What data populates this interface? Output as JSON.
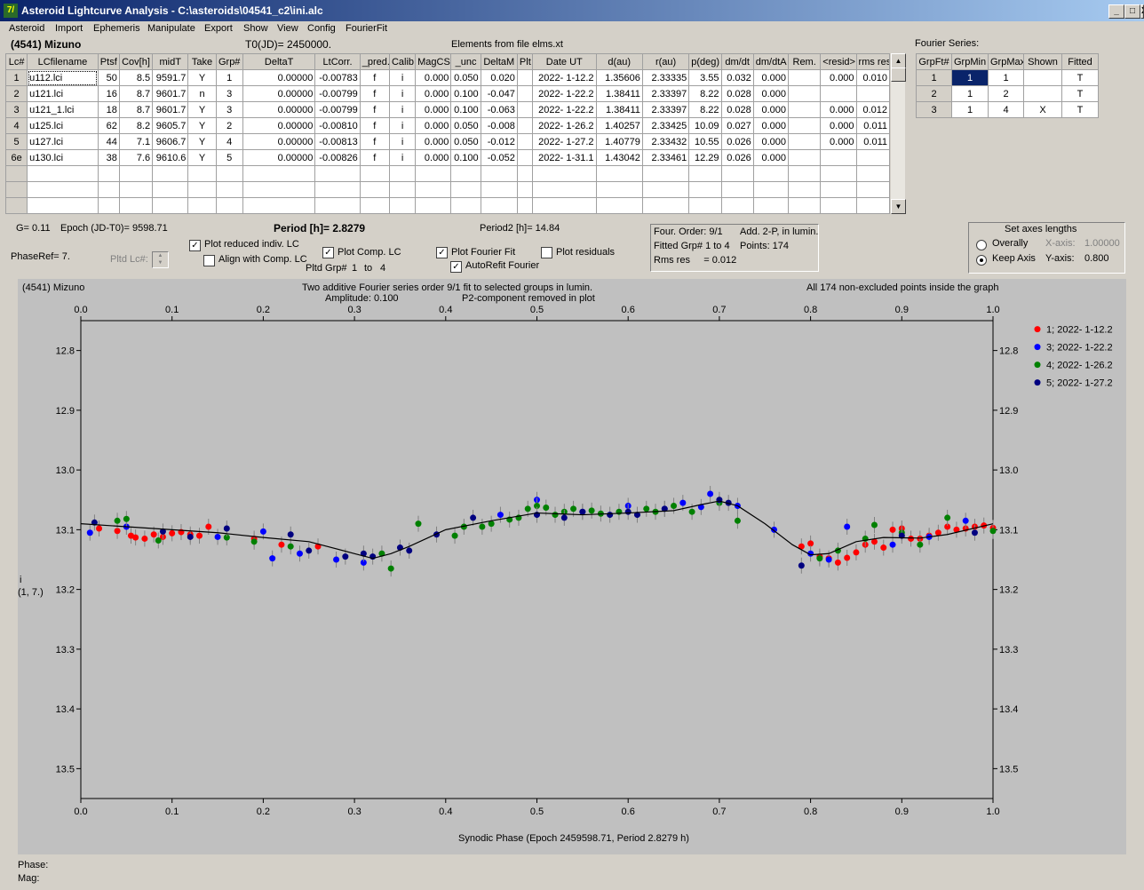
{
  "window": {
    "title": "Asteroid Lightcurve Analysis - C:\\asteroids\\04541_c2\\ini.alc",
    "icon": "7/",
    "buttons": [
      "_",
      "□",
      "X"
    ]
  },
  "menu": [
    "Asteroid",
    "Import",
    "Ephemeris",
    "Manipulate",
    "Export",
    "Show",
    "View",
    "Config",
    "FourierFit"
  ],
  "header": {
    "asteroid": "(4541) Mizuno",
    "t0": "T0(JD)= 2450000.",
    "elements": "Elements from file elms.xt",
    "fourier_label": "Fourier Series:"
  },
  "lc_table": {
    "columns": [
      "Lc#",
      "LCfilename",
      "Ptsf",
      "Cov[h]",
      "midT",
      "Take",
      "Grp#",
      "DeltaT",
      "LtCorr.",
      "_pred.",
      "Calib.",
      "MagCS",
      "_unc",
      "DeltaM",
      "Plt",
      "Date UT",
      "d(au)",
      "r(au)",
      "p(deg)",
      "dm/dt",
      "dm/dtA",
      "Rem.",
      "<resid>",
      "rms res"
    ],
    "rows": [
      [
        "1",
        "u112.lci",
        "50",
        "8.5",
        "9591.7",
        "Y",
        "1",
        "0.00000",
        "-0.00783",
        "f",
        "i",
        "0.000",
        "0.050",
        "0.020",
        "",
        "2022- 1-12.2",
        "1.35606",
        "2.33335",
        "3.55",
        "0.032",
        "0.000",
        "",
        "0.000",
        "0.010"
      ],
      [
        "2",
        "u121.lci",
        "16",
        "8.7",
        "9601.7",
        "n",
        "3",
        "0.00000",
        "-0.00799",
        "f",
        "i",
        "0.000",
        "0.100",
        "-0.047",
        "",
        "2022- 1-22.2",
        "1.38411",
        "2.33397",
        "8.22",
        "0.028",
        "0.000",
        "",
        "",
        ""
      ],
      [
        "3",
        "u121_1.lci",
        "18",
        "8.7",
        "9601.7",
        "Y",
        "3",
        "0.00000",
        "-0.00799",
        "f",
        "i",
        "0.000",
        "0.100",
        "-0.063",
        "",
        "2022- 1-22.2",
        "1.38411",
        "2.33397",
        "8.22",
        "0.028",
        "0.000",
        "",
        "0.000",
        "0.012"
      ],
      [
        "4",
        "u125.lci",
        "62",
        "8.2",
        "9605.7",
        "Y",
        "2",
        "0.00000",
        "-0.00810",
        "f",
        "i",
        "0.000",
        "0.050",
        "-0.008",
        "",
        "2022- 1-26.2",
        "1.40257",
        "2.33425",
        "10.09",
        "0.027",
        "0.000",
        "",
        "0.000",
        "0.011"
      ],
      [
        "5",
        "u127.lci",
        "44",
        "7.1",
        "9606.7",
        "Y",
        "4",
        "0.00000",
        "-0.00813",
        "f",
        "i",
        "0.000",
        "0.050",
        "-0.012",
        "",
        "2022- 1-27.2",
        "1.40779",
        "2.33432",
        "10.55",
        "0.026",
        "0.000",
        "",
        "0.000",
        "0.011"
      ],
      [
        "6e",
        "u130.lci",
        "38",
        "7.6",
        "9610.6",
        "Y",
        "5",
        "0.00000",
        "-0.00826",
        "f",
        "i",
        "0.000",
        "0.100",
        "-0.052",
        "",
        "2022- 1-31.1",
        "1.43042",
        "2.33461",
        "12.29",
        "0.026",
        "0.000",
        "",
        "",
        ""
      ]
    ],
    "empty_rows": 3
  },
  "fourier_table": {
    "columns": [
      "GrpFt#",
      "GrpMin",
      "GrpMax",
      "Shown",
      "Fitted"
    ],
    "rows": [
      [
        "1",
        "1",
        "1",
        "",
        "T"
      ],
      [
        "2",
        "1",
        "2",
        "",
        "T"
      ],
      [
        "3",
        "1",
        "4",
        "X",
        "T"
      ]
    ]
  },
  "info": {
    "g": "G= 0.11",
    "epoch": "Epoch (JD-T0)= 9598.71",
    "period": "Period [h]= 2.8279",
    "period2": "Period2 [h]= 14.84",
    "phaseref": "PhaseRef= 7.",
    "pltd_lc": "Pltd Lc#:",
    "pltd_grp": "Pltd Grp#",
    "grp_from": "1",
    "grp_to_word": "to",
    "grp_to": "4"
  },
  "options": {
    "plot_reduced": {
      "label": "Plot reduced indiv. LC",
      "checked": true
    },
    "align_comp": {
      "label": "Align with Comp. LC",
      "checked": false
    },
    "plot_comp": {
      "label": "Plot Comp. LC",
      "checked": true
    },
    "plot_fourier": {
      "label": "Plot Fourier Fit",
      "checked": true
    },
    "plot_residuals": {
      "label": "Plot residuals",
      "checked": false
    },
    "autorefit": {
      "label": "AutoRefit Fourier",
      "checked": true
    }
  },
  "fit_info": {
    "order": "Four. Order:  9/1",
    "add": "Add. 2-P, in lumin.",
    "fitted": "Fitted Grp# 1 to 4",
    "points": "Points: 174",
    "rms": "Rms res     = 0.012"
  },
  "axes_box": {
    "title": "Set axes lengths",
    "overall": "Overally",
    "keep": "Keep Axis",
    "xaxis_label": "X-axis:",
    "xaxis_val": "1.00000",
    "yaxis_label": "Y-axis:",
    "yaxis_val": "0.800",
    "selected": "keep"
  },
  "plot": {
    "corner_label": "(4541) Mizuno",
    "title1": "Two additive Fourier series order 9/1 fit to selected groups in lumin.",
    "amplitude": "Amplitude: 0.100",
    "p2": "P2-component removed in plot",
    "points_note": "All 174 non-excluded points inside the graph",
    "ylabel1": "i",
    "ylabel2": "(1, 7.)",
    "xlabel": "Synodic Phase (Epoch 2459598.71, Period 2.8279 h)"
  },
  "chart_data": {
    "type": "scatter",
    "xlim": [
      0.0,
      1.0
    ],
    "ylim": [
      12.75,
      13.55
    ],
    "y_inverted": true,
    "x_ticks": [
      "0.0",
      "0.1",
      "0.2",
      "0.3",
      "0.4",
      "0.5",
      "0.6",
      "0.7",
      "0.8",
      "0.9",
      "1.0"
    ],
    "y_ticks": [
      "12.8",
      "12.9",
      "13.0",
      "13.1",
      "13.2",
      "13.3",
      "13.4",
      "13.5"
    ],
    "y_tick_values": [
      12.8,
      12.9,
      13.0,
      13.1,
      13.2,
      13.3,
      13.4,
      13.5
    ],
    "grid": false,
    "legend_position": "right",
    "series": [
      {
        "name": "1; 2022- 1-12.2",
        "color": "#ff0000",
        "points": [
          [
            0.02,
            13.098
          ],
          [
            0.04,
            13.102
          ],
          [
            0.055,
            13.11
          ],
          [
            0.06,
            13.113
          ],
          [
            0.07,
            13.115
          ],
          [
            0.08,
            13.108
          ],
          [
            0.09,
            13.112
          ],
          [
            0.1,
            13.106
          ],
          [
            0.11,
            13.104
          ],
          [
            0.12,
            13.108
          ],
          [
            0.13,
            13.11
          ],
          [
            0.14,
            13.095
          ],
          [
            0.19,
            13.115
          ],
          [
            0.22,
            13.125
          ],
          [
            0.26,
            13.128
          ],
          [
            0.79,
            13.128
          ],
          [
            0.8,
            13.123
          ],
          [
            0.81,
            13.145
          ],
          [
            0.82,
            13.148
          ],
          [
            0.83,
            13.155
          ],
          [
            0.84,
            13.147
          ],
          [
            0.85,
            13.138
          ],
          [
            0.86,
            13.125
          ],
          [
            0.87,
            13.12
          ],
          [
            0.88,
            13.13
          ],
          [
            0.89,
            13.1
          ],
          [
            0.9,
            13.098
          ],
          [
            0.91,
            13.115
          ],
          [
            0.92,
            13.115
          ],
          [
            0.93,
            13.11
          ],
          [
            0.94,
            13.105
          ],
          [
            0.95,
            13.095
          ],
          [
            0.96,
            13.1
          ],
          [
            0.97,
            13.098
          ],
          [
            0.98,
            13.095
          ],
          [
            0.99,
            13.093
          ],
          [
            1.0,
            13.097
          ]
        ]
      },
      {
        "name": "3; 2022- 1-22.2",
        "color": "#0000ff",
        "points": [
          [
            0.01,
            13.105
          ],
          [
            0.05,
            13.095
          ],
          [
            0.15,
            13.112
          ],
          [
            0.2,
            13.103
          ],
          [
            0.21,
            13.148
          ],
          [
            0.24,
            13.14
          ],
          [
            0.28,
            13.15
          ],
          [
            0.31,
            13.155
          ],
          [
            0.46,
            13.075
          ],
          [
            0.5,
            13.05
          ],
          [
            0.55,
            13.07
          ],
          [
            0.6,
            13.06
          ],
          [
            0.64,
            13.065
          ],
          [
            0.66,
            13.055
          ],
          [
            0.68,
            13.062
          ],
          [
            0.69,
            13.04
          ],
          [
            0.72,
            13.06
          ],
          [
            0.76,
            13.1
          ],
          [
            0.8,
            13.14
          ],
          [
            0.82,
            13.15
          ],
          [
            0.84,
            13.095
          ],
          [
            0.89,
            13.125
          ],
          [
            0.93,
            13.112
          ],
          [
            0.97,
            13.085
          ]
        ]
      },
      {
        "name": "4; 2022- 1-26.2",
        "color": "#008000",
        "points": [
          [
            0.04,
            13.085
          ],
          [
            0.05,
            13.082
          ],
          [
            0.085,
            13.118
          ],
          [
            0.16,
            13.113
          ],
          [
            0.19,
            13.12
          ],
          [
            0.23,
            13.128
          ],
          [
            0.33,
            13.14
          ],
          [
            0.34,
            13.165
          ],
          [
            0.37,
            13.09
          ],
          [
            0.41,
            13.11
          ],
          [
            0.42,
            13.095
          ],
          [
            0.44,
            13.095
          ],
          [
            0.45,
            13.09
          ],
          [
            0.47,
            13.083
          ],
          [
            0.48,
            13.08
          ],
          [
            0.49,
            13.065
          ],
          [
            0.5,
            13.06
          ],
          [
            0.51,
            13.063
          ],
          [
            0.52,
            13.075
          ],
          [
            0.53,
            13.07
          ],
          [
            0.54,
            13.065
          ],
          [
            0.56,
            13.068
          ],
          [
            0.57,
            13.073
          ],
          [
            0.59,
            13.07
          ],
          [
            0.62,
            13.065
          ],
          [
            0.63,
            13.07
          ],
          [
            0.65,
            13.06
          ],
          [
            0.67,
            13.07
          ],
          [
            0.7,
            13.055
          ],
          [
            0.72,
            13.085
          ],
          [
            0.81,
            13.148
          ],
          [
            0.83,
            13.135
          ],
          [
            0.86,
            13.115
          ],
          [
            0.87,
            13.092
          ],
          [
            0.9,
            13.105
          ],
          [
            0.92,
            13.125
          ],
          [
            0.95,
            13.08
          ],
          [
            1.0,
            13.102
          ]
        ]
      },
      {
        "name": "5; 2022- 1-27.2",
        "color": "#000080",
        "points": [
          [
            0.015,
            13.088
          ],
          [
            0.09,
            13.103
          ],
          [
            0.12,
            13.112
          ],
          [
            0.16,
            13.098
          ],
          [
            0.23,
            13.108
          ],
          [
            0.25,
            13.135
          ],
          [
            0.29,
            13.145
          ],
          [
            0.31,
            13.14
          ],
          [
            0.32,
            13.145
          ],
          [
            0.35,
            13.13
          ],
          [
            0.36,
            13.135
          ],
          [
            0.39,
            13.108
          ],
          [
            0.43,
            13.08
          ],
          [
            0.5,
            13.075
          ],
          [
            0.53,
            13.08
          ],
          [
            0.55,
            13.07
          ],
          [
            0.58,
            13.075
          ],
          [
            0.6,
            13.07
          ],
          [
            0.61,
            13.075
          ],
          [
            0.64,
            13.065
          ],
          [
            0.7,
            13.05
          ],
          [
            0.71,
            13.055
          ],
          [
            0.79,
            13.16
          ],
          [
            0.9,
            13.11
          ],
          [
            0.98,
            13.105
          ]
        ]
      }
    ],
    "fit_curve": [
      [
        0.0,
        13.09
      ],
      [
        0.05,
        13.095
      ],
      [
        0.1,
        13.1
      ],
      [
        0.15,
        13.105
      ],
      [
        0.2,
        13.113
      ],
      [
        0.25,
        13.12
      ],
      [
        0.3,
        13.14
      ],
      [
        0.32,
        13.148
      ],
      [
        0.34,
        13.14
      ],
      [
        0.36,
        13.128
      ],
      [
        0.4,
        13.1
      ],
      [
        0.45,
        13.085
      ],
      [
        0.5,
        13.072
      ],
      [
        0.55,
        13.075
      ],
      [
        0.6,
        13.072
      ],
      [
        0.65,
        13.068
      ],
      [
        0.68,
        13.058
      ],
      [
        0.7,
        13.052
      ],
      [
        0.72,
        13.06
      ],
      [
        0.75,
        13.09
      ],
      [
        0.78,
        13.125
      ],
      [
        0.8,
        13.142
      ],
      [
        0.82,
        13.14
      ],
      [
        0.85,
        13.12
      ],
      [
        0.88,
        13.113
      ],
      [
        0.92,
        13.114
      ],
      [
        0.95,
        13.108
      ],
      [
        1.0,
        13.09
      ]
    ]
  },
  "status": {
    "phase": "Phase:",
    "mag": "Mag:"
  }
}
